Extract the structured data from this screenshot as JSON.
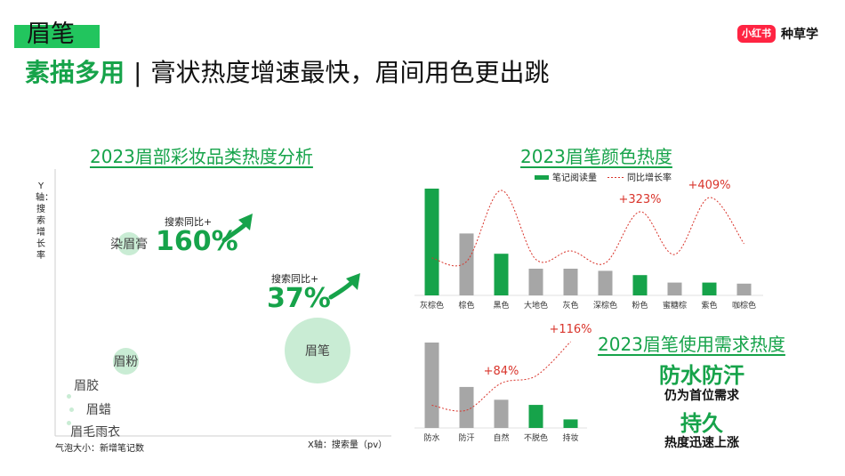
{
  "header": {
    "title": "眉笔",
    "subtitle_highlight": "素描多用",
    "subtitle_separator": "|",
    "subtitle_rest": "膏状热度增速最快，眉间用色更出跳"
  },
  "brand": {
    "logo_text": "小红书",
    "name": "种草学"
  },
  "colors": {
    "green": "#16a34a",
    "bubble": "#c9ecd4",
    "bar_grey": "#a6a6a6",
    "growth_line": "#d9342b"
  },
  "chart_data": [
    {
      "type": "scatter",
      "title": "2023眉部彩妆品类热度分析",
      "xlabel": "X轴：搜索量（pv）",
      "ylabel": "Y轴：搜索增长率",
      "size_label": "气泡大小：新增笔记数",
      "points": [
        {
          "name": "染眉膏",
          "x": 0.22,
          "y": 0.72,
          "size": 0.35
        },
        {
          "name": "眉笔",
          "x": 0.78,
          "y": 0.32,
          "size": 1.0
        },
        {
          "name": "眉粉",
          "x": 0.21,
          "y": 0.28,
          "size": 0.4
        },
        {
          "name": "眉胶",
          "x": 0.04,
          "y": 0.15,
          "size": 0.05
        },
        {
          "name": "眉蜡",
          "x": 0.05,
          "y": 0.1,
          "size": 0.03
        },
        {
          "name": "眉毛雨衣",
          "x": 0.04,
          "y": 0.05,
          "size": 0.02
        }
      ],
      "annotations": [
        {
          "label": "搜索同比+",
          "value": "160%"
        },
        {
          "label": "搜索同比+",
          "value": "37%"
        }
      ]
    },
    {
      "type": "bar",
      "title": "2023眉笔颜色热度",
      "legend": [
        "笔记阅读量",
        "同比增长率"
      ],
      "categories": [
        "灰棕色",
        "棕色",
        "黑色",
        "大地色",
        "灰色",
        "深棕色",
        "粉色",
        "蜜糖棕",
        "紫色",
        "咖棕色"
      ],
      "series": [
        {
          "name": "笔记阅读量",
          "values": [
            100,
            58,
            39,
            25,
            25,
            23,
            19,
            12,
            12,
            11
          ]
        },
        {
          "name": "同比增长率",
          "values": [
            35,
            30,
            130,
            33,
            45,
            28,
            100,
            40,
            120,
            55
          ]
        }
      ],
      "highlight": [
        true,
        false,
        true,
        false,
        false,
        false,
        true,
        false,
        true,
        false
      ],
      "annotations": [
        {
          "category": "粉色",
          "text": "+323%"
        },
        {
          "category": "紫色",
          "text": "+409%"
        }
      ]
    },
    {
      "type": "bar",
      "title": "2023眉笔使用需求热度",
      "categories": [
        "防水",
        "防汗",
        "自然",
        "不脱色",
        "持妆"
      ],
      "series": [
        {
          "name": "笔记阅读量",
          "values": [
            100,
            48,
            33,
            27,
            10
          ]
        },
        {
          "name": "同比增长率",
          "values": [
            30,
            20,
            75,
            90,
            160
          ]
        }
      ],
      "highlight": [
        false,
        false,
        false,
        true,
        true
      ],
      "annotations": [
        {
          "category": "自然",
          "text": "+84%"
        },
        {
          "category": "持妆",
          "text": "+116%"
        }
      ]
    }
  ],
  "needs": {
    "need1_big": "防水防汗",
    "need1_small": "仍为首位需求",
    "need2_big": "持久",
    "need2_small": "热度迅速上涨"
  }
}
